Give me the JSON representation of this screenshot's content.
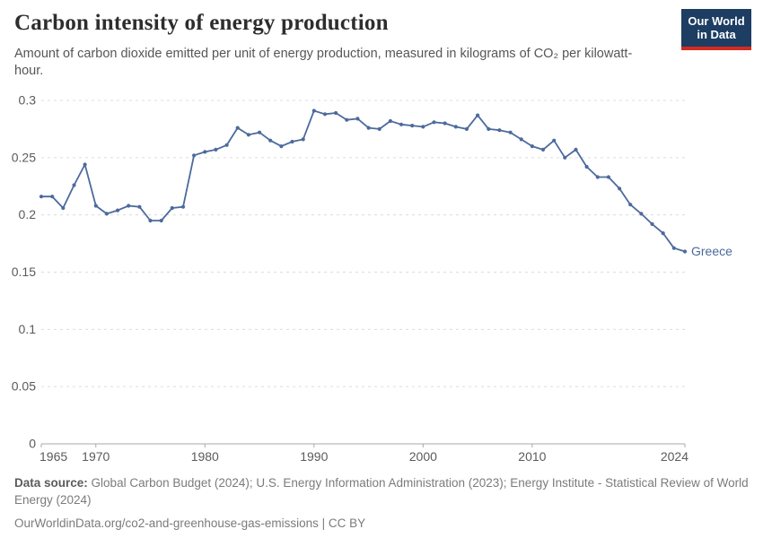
{
  "header": {
    "title": "Carbon intensity of energy production",
    "subtitle": "Amount of carbon dioxide emitted per unit of energy production, measured in kilograms of CO₂ per kilowatt-hour.",
    "logo": {
      "line1": "Our World",
      "line2": "in Data"
    }
  },
  "chart_data": {
    "type": "line",
    "title": "Carbon intensity of energy production",
    "xlabel": "",
    "ylabel": "",
    "ylim": [
      0,
      0.3
    ],
    "grid": "horizontal-dashed",
    "legend_position": "end-of-line-label",
    "end_label": "Greece",
    "line_color": "#4C6A9C",
    "x": [
      1965,
      1966,
      1967,
      1968,
      1969,
      1970,
      1971,
      1972,
      1973,
      1974,
      1975,
      1976,
      1977,
      1978,
      1979,
      1980,
      1981,
      1982,
      1983,
      1984,
      1985,
      1986,
      1987,
      1988,
      1989,
      1990,
      1991,
      1992,
      1993,
      1994,
      1995,
      1996,
      1997,
      1998,
      1999,
      2000,
      2001,
      2002,
      2003,
      2004,
      2005,
      2006,
      2007,
      2008,
      2009,
      2010,
      2011,
      2012,
      2013,
      2014,
      2015,
      2016,
      2017,
      2018,
      2019,
      2020,
      2021,
      2022,
      2023,
      2024
    ],
    "series": [
      {
        "name": "Greece",
        "color": "#4C6A9C",
        "values": [
          0.216,
          0.216,
          0.206,
          0.226,
          0.244,
          0.208,
          0.201,
          0.204,
          0.208,
          0.207,
          0.195,
          0.195,
          0.206,
          0.207,
          0.252,
          0.255,
          0.257,
          0.261,
          0.276,
          0.27,
          0.272,
          0.265,
          0.26,
          0.264,
          0.266,
          0.291,
          0.288,
          0.289,
          0.283,
          0.284,
          0.276,
          0.275,
          0.282,
          0.279,
          0.278,
          0.277,
          0.281,
          0.28,
          0.277,
          0.275,
          0.287,
          0.275,
          0.274,
          0.272,
          0.266,
          0.26,
          0.257,
          0.265,
          0.25,
          0.257,
          0.242,
          0.233,
          0.233,
          0.223,
          0.209,
          0.201,
          0.192,
          0.184,
          0.171,
          0.168
        ]
      }
    ],
    "yticks": [
      {
        "v": 0,
        "label": "0"
      },
      {
        "v": 0.05,
        "label": "0.05"
      },
      {
        "v": 0.1,
        "label": "0.1"
      },
      {
        "v": 0.15,
        "label": "0.15"
      },
      {
        "v": 0.2,
        "label": "0.2"
      },
      {
        "v": 0.25,
        "label": "0.25"
      },
      {
        "v": 0.3,
        "label": "0.3"
      }
    ],
    "xticks": [
      1965,
      1970,
      1980,
      1990,
      2000,
      2010,
      2024
    ]
  },
  "footer": {
    "source_label": "Data source:",
    "source_text": "Global Carbon Budget (2024); U.S. Energy Information Administration (2023); Energy Institute - Statistical Review of World Energy (2024)",
    "note": "OurWorldinData.org/co2-and-greenhouse-gas-emissions | CC BY"
  },
  "colors": {
    "line": "#4C6A9C",
    "logo_bg": "#1d3d63",
    "logo_red": "#d42b21",
    "gridline": "#dcdcdc",
    "axis": "#a8a8a8",
    "tick_text": "#5b5b5b"
  }
}
